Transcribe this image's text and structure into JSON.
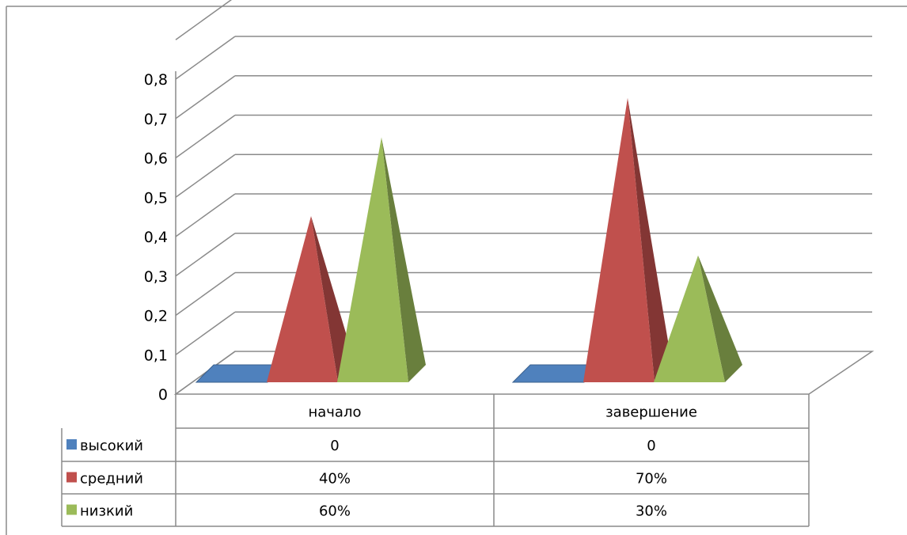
{
  "chart_data": {
    "type": "bar",
    "style": "3d-pyramid",
    "categories": [
      "начало",
      "завершение"
    ],
    "series": [
      {
        "name": "высокий",
        "values": [
          0,
          0
        ],
        "labels": [
          "0",
          "0"
        ],
        "color": "#4f81bd"
      },
      {
        "name": "средний",
        "values": [
          0.4,
          0.7
        ],
        "labels": [
          "40%",
          "70%"
        ],
        "color": "#c0504d"
      },
      {
        "name": "низкий",
        "values": [
          0.6,
          0.3
        ],
        "labels": [
          "60%",
          "30%"
        ],
        "color": "#9bbb59"
      }
    ],
    "ylim": [
      0,
      0.8
    ],
    "yticks": [
      0,
      0.1,
      0.2,
      0.3,
      0.4,
      0.5,
      0.6,
      0.7,
      0.8
    ],
    "ytick_labels": [
      "0",
      "0,1",
      "0,2",
      "0,3",
      "0,4",
      "0,5",
      "0,6",
      "0,7",
      "0,8"
    ],
    "grid": true,
    "legend": "data-table",
    "title": "",
    "xlabel": "",
    "ylabel": ""
  }
}
